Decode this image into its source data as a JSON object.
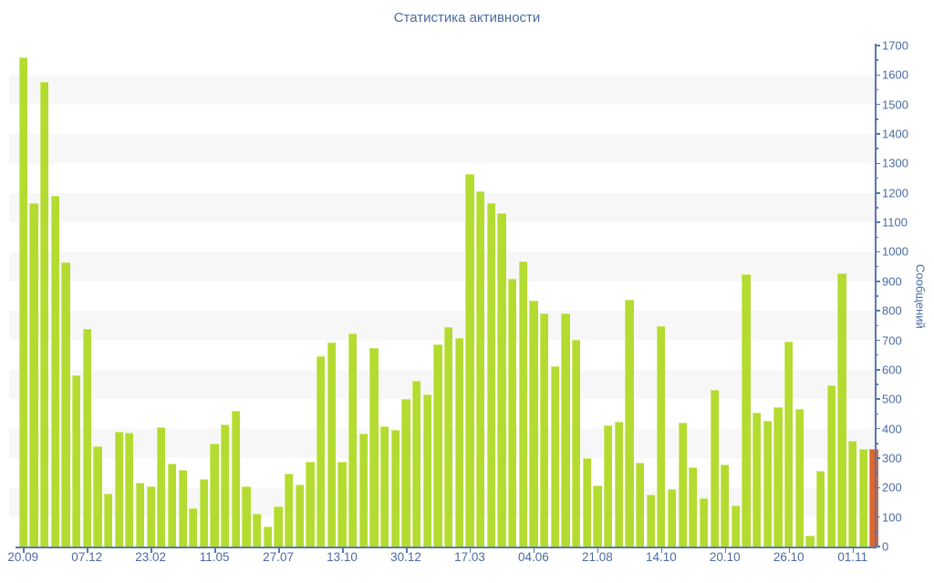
{
  "title": "Статистика активности",
  "chart_data": {
    "type": "bar",
    "title": "Статистика активности",
    "ylabel": "Сообщений",
    "xlabel": "",
    "ylim": [
      0,
      1700
    ],
    "y_major_step": 100,
    "y_minor_step": 50,
    "grid": "alternating horizontal bands every 100 units",
    "legend": "none",
    "x_tick_labels": [
      "20.09",
      "07.12",
      "23.02",
      "11.05",
      "27.07",
      "13.10",
      "30.12",
      "17.03",
      "04.06",
      "21.08",
      "14.10",
      "20.10",
      "26.10",
      "01.11"
    ],
    "x_tick_every_n_bars": 6,
    "values": [
      1660,
      1165,
      1575,
      1190,
      965,
      580,
      740,
      340,
      180,
      390,
      385,
      215,
      205,
      405,
      280,
      260,
      130,
      230,
      350,
      415,
      460,
      205,
      110,
      67,
      135,
      247,
      210,
      288,
      645,
      692,
      288,
      723,
      383,
      675,
      409,
      397,
      502,
      562,
      517,
      687,
      745,
      709,
      1265,
      1205,
      1165,
      1130,
      909,
      969,
      835,
      791,
      613,
      791,
      703,
      300,
      206,
      412,
      422,
      837,
      283,
      177,
      747,
      194,
      419,
      270,
      165,
      531,
      278,
      139,
      924,
      453,
      426,
      474,
      695,
      466,
      38,
      258,
      548,
      927,
      358,
      330,
      332
    ],
    "highlight_index": 80,
    "bar_color": "#b3db30",
    "bar_edge_color": "#cfea6e",
    "highlight_color": "#e0662c",
    "highlight_edge_color": "#ef9255",
    "axis_color": "#5878ad",
    "label_color": "#4a6ba3",
    "band_color": "#f7f7f7",
    "background_color": "#ffffff"
  }
}
